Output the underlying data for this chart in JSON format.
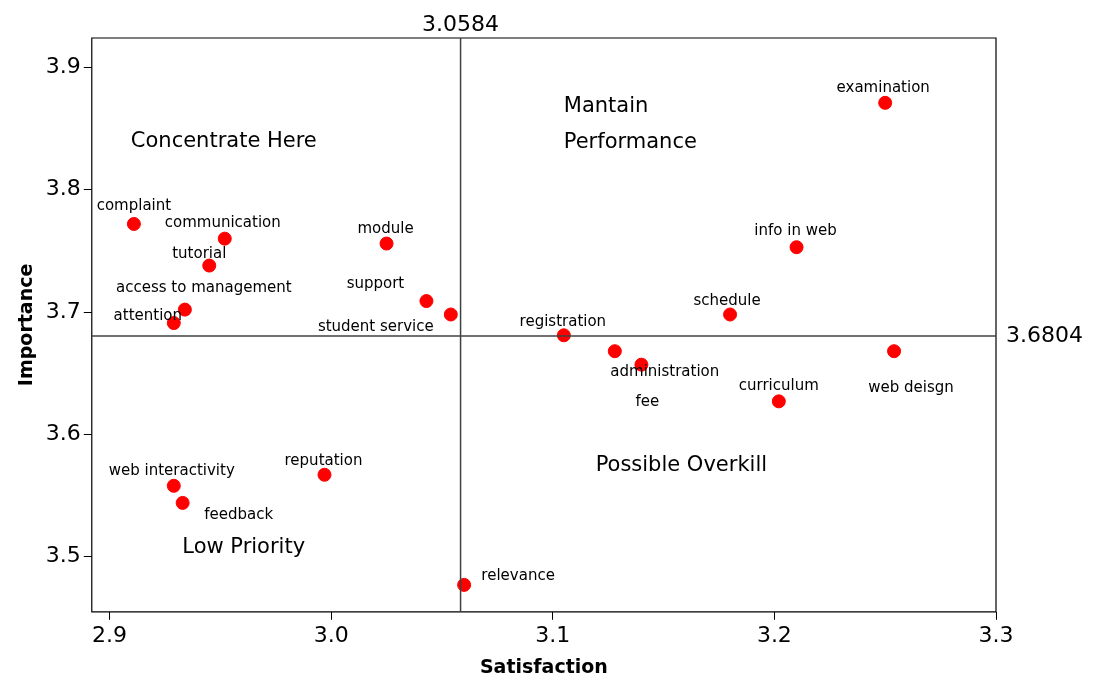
{
  "chart_data": {
    "type": "scatter",
    "xlabel": "Satisfaction",
    "ylabel": "Importance",
    "x": [
      2.911,
      2.952,
      2.945,
      2.934,
      2.929,
      3.025,
      3.043,
      3.054,
      3.105,
      3.128,
      3.14,
      3.18,
      3.21,
      3.25,
      3.254,
      3.202,
      2.997,
      2.929,
      2.933,
      3.06
    ],
    "series": [
      {
        "color": "#ff0000",
        "values": [
          3.772,
          3.76,
          3.738,
          3.702,
          3.691,
          3.756,
          3.709,
          3.698,
          3.681,
          3.668,
          3.657,
          3.698,
          3.753,
          3.871,
          3.668,
          3.627,
          3.567,
          3.558,
          3.544,
          3.477
        ]
      }
    ],
    "xlim": [
      2.892,
      3.3
    ],
    "xticks": [
      2.9,
      {
        "value": 3,
        "label": "3.0"
      },
      3.1,
      3.2,
      3.3
    ],
    "ylim": [
      3.455,
      3.924
    ],
    "yticks": [
      3.5,
      3.6,
      3.7,
      3.8,
      3.9
    ],
    "ref_lines": [
      {
        "axis": "x",
        "value": 3.0584,
        "label": "3.0584",
        "color": "#404040"
      },
      {
        "axis": "y",
        "value": 3.6804,
        "label": "3.6804",
        "color": "#404040"
      }
    ],
    "annotations": [
      {
        "text": "complaint",
        "x": 2.911,
        "y": 3.772
      },
      {
        "text": "communication",
        "x": 2.952,
        "y": 3.76
      },
      {
        "text": "tutorial",
        "x": 2.945,
        "y": 3.738
      },
      {
        "text": "access to management",
        "x": 2.934,
        "y": 3.702
      },
      {
        "text": "attention",
        "x": 2.929,
        "y": 3.691
      },
      {
        "text": "module",
        "x": 3.025,
        "y": 3.756
      },
      {
        "text": "support",
        "x": 3.043,
        "y": 3.709
      },
      {
        "text": "student service",
        "x": 3.054,
        "y": 3.698
      },
      {
        "text": "registration",
        "x": 3.105,
        "y": 3.681
      },
      {
        "text": "administration",
        "x": 3.128,
        "y": 3.668
      },
      {
        "text": "fee",
        "x": 3.14,
        "y": 3.657
      },
      {
        "text": "schedule",
        "x": 3.18,
        "y": 3.698
      },
      {
        "text": "info in web",
        "x": 3.21,
        "y": 3.753
      },
      {
        "text": "examination",
        "x": 3.25,
        "y": 3.871
      },
      {
        "text": "web deisgn",
        "x": 3.254,
        "y": 3.668
      },
      {
        "text": "curriculum",
        "x": 3.202,
        "y": 3.627
      },
      {
        "text": "reputation",
        "x": 2.997,
        "y": 3.567
      },
      {
        "text": "web interactivity",
        "x": 2.929,
        "y": 3.558
      },
      {
        "text": "feedback",
        "x": 2.933,
        "y": 3.544
      },
      {
        "text": "relevance",
        "x": 3.06,
        "y": 3.477
      },
      "Concentrate Here",
      "Mantain Performance",
      "Possible Overkill",
      "Low Priority"
    ],
    "marker": "circle",
    "grid": false,
    "legend": false
  }
}
